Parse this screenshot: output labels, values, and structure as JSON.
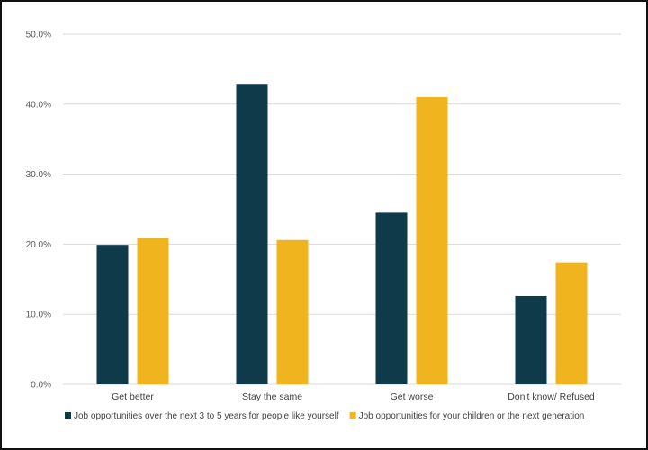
{
  "chart_data": {
    "type": "bar",
    "title": "",
    "xlabel": "",
    "ylabel": "",
    "ylim": [
      0,
      50
    ],
    "yticks": [
      0,
      10,
      20,
      30,
      40,
      50
    ],
    "ytick_labels": [
      "0.0%",
      "10.0%",
      "20.0%",
      "30.0%",
      "40.0%",
      "50.0%"
    ],
    "grid": true,
    "legend_position": "bottom",
    "categories": [
      "Get better",
      "Stay the same",
      "Get worse",
      "Don't know/ Refused"
    ],
    "series": [
      {
        "name": "Job opportunities over the next 3 to 5 years for people like yourself",
        "color": "#0e3a4a",
        "values": [
          19.9,
          42.9,
          24.5,
          12.6
        ]
      },
      {
        "name": "Job opportunities for your children or the next generation",
        "color": "#f0b41e",
        "values": [
          20.9,
          20.6,
          41.0,
          17.4
        ]
      }
    ]
  }
}
